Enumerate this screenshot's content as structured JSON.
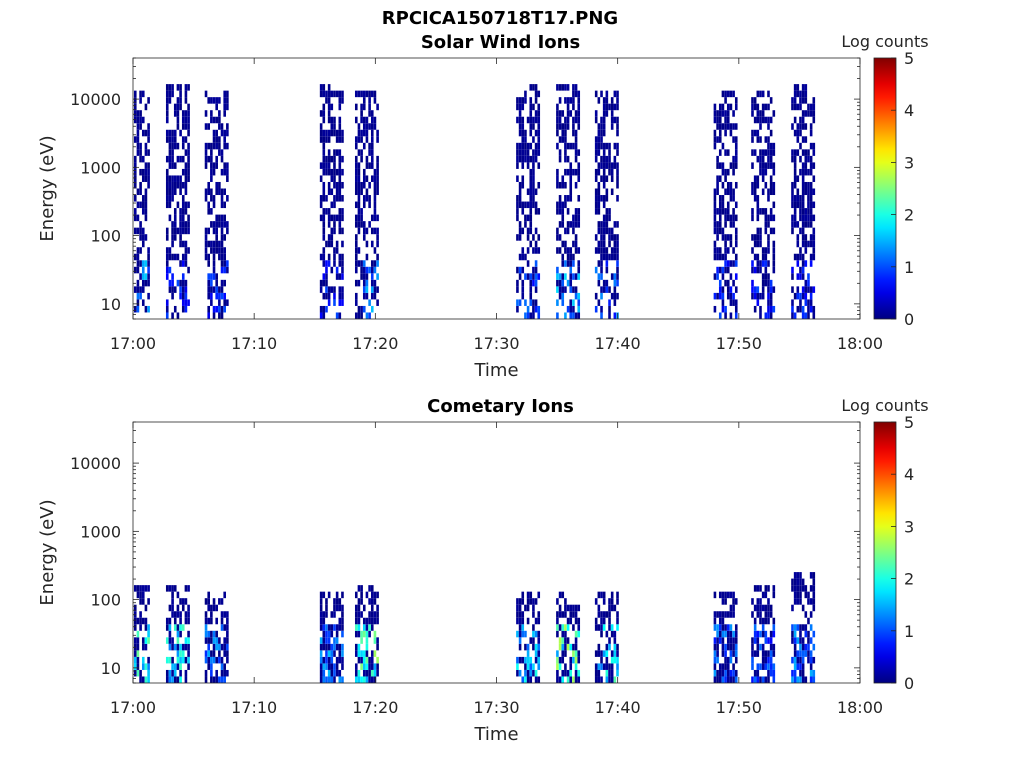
{
  "figure_title": "RPCICA150718T17.PNG",
  "chart_data": [
    {
      "type": "heatmap",
      "title": "Solar Wind Ions",
      "xlabel": "Time",
      "ylabel": "Energy (eV)",
      "x_ticks": [
        "17:00",
        "17:10",
        "17:20",
        "17:30",
        "17:40",
        "17:50",
        "18:00"
      ],
      "x_range_minutes": [
        0,
        60
      ],
      "y_scale": "log",
      "y_ticks": [
        10,
        100,
        1000,
        10000
      ],
      "y_ticklabels": [
        "10",
        "100",
        "1000",
        "10000"
      ],
      "ylim": [
        6,
        40000
      ],
      "colorbar": {
        "label": "Log counts",
        "range": [
          0,
          5
        ],
        "ticks": [
          "0",
          "1",
          "2",
          "3",
          "4",
          "5"
        ],
        "colormap": "jet"
      },
      "bursts": [
        {
          "t_min": 0.3,
          "e_high": 12000,
          "peak_log_counts": 1.7
        },
        {
          "t_min": 3.6,
          "e_high": 14000,
          "peak_log_counts": 1.0
        },
        {
          "t_min": 6.8,
          "e_high": 12000,
          "peak_log_counts": 1.0
        },
        {
          "t_min": 16.3,
          "e_high": 14000,
          "peak_log_counts": 1.0
        },
        {
          "t_min": 19.2,
          "e_high": 13000,
          "peak_log_counts": 1.6
        },
        {
          "t_min": 32.5,
          "e_high": 14000,
          "peak_log_counts": 1.2
        },
        {
          "t_min": 35.8,
          "e_high": 14000,
          "peak_log_counts": 1.8
        },
        {
          "t_min": 39.0,
          "e_high": 13000,
          "peak_log_counts": 1.4
        },
        {
          "t_min": 48.8,
          "e_high": 13000,
          "peak_log_counts": 1.0
        },
        {
          "t_min": 51.9,
          "e_high": 13000,
          "peak_log_counts": 1.0
        },
        {
          "t_min": 55.2,
          "e_high": 14000,
          "peak_log_counts": 1.0
        }
      ]
    },
    {
      "type": "heatmap",
      "title": "Cometary Ions",
      "xlabel": "Time",
      "ylabel": "Energy (eV)",
      "x_ticks": [
        "17:00",
        "17:10",
        "17:20",
        "17:30",
        "17:40",
        "17:50",
        "18:00"
      ],
      "x_range_minutes": [
        0,
        60
      ],
      "y_scale": "log",
      "y_ticks": [
        10,
        100,
        1000,
        10000
      ],
      "y_ticklabels": [
        "10",
        "100",
        "1000",
        "10000"
      ],
      "ylim": [
        6,
        40000
      ],
      "colorbar": {
        "label": "Log counts",
        "range": [
          0,
          5
        ],
        "ticks": [
          "0",
          "1",
          "2",
          "3",
          "4",
          "5"
        ],
        "colormap": "jet"
      },
      "bursts": [
        {
          "t_min": 0.3,
          "e_high": 150,
          "peak_log_counts": 2.5
        },
        {
          "t_min": 3.6,
          "e_high": 150,
          "peak_log_counts": 2.3
        },
        {
          "t_min": 6.8,
          "e_high": 120,
          "peak_log_counts": 1.5
        },
        {
          "t_min": 16.3,
          "e_high": 120,
          "peak_log_counts": 1.6
        },
        {
          "t_min": 19.2,
          "e_high": 150,
          "peak_log_counts": 2.8
        },
        {
          "t_min": 32.5,
          "e_high": 120,
          "peak_log_counts": 2.0
        },
        {
          "t_min": 35.8,
          "e_high": 130,
          "peak_log_counts": 2.8
        },
        {
          "t_min": 39.0,
          "e_high": 130,
          "peak_log_counts": 2.3
        },
        {
          "t_min": 48.8,
          "e_high": 120,
          "peak_log_counts": 1.4
        },
        {
          "t_min": 51.9,
          "e_high": 150,
          "peak_log_counts": 1.2
        },
        {
          "t_min": 55.2,
          "e_high": 250,
          "peak_log_counts": 1.5
        }
      ]
    }
  ]
}
